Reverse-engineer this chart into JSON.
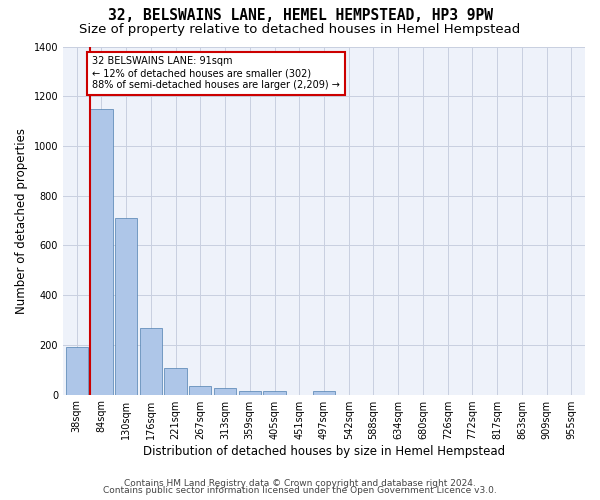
{
  "title": "32, BELSWAINS LANE, HEMEL HEMPSTEAD, HP3 9PW",
  "subtitle": "Size of property relative to detached houses in Hemel Hempstead",
  "xlabel": "Distribution of detached houses by size in Hemel Hempstead",
  "ylabel": "Number of detached properties",
  "footer_line1": "Contains HM Land Registry data © Crown copyright and database right 2024.",
  "footer_line2": "Contains public sector information licensed under the Open Government Licence v3.0.",
  "annotation_line1": "32 BELSWAINS LANE: 91sqm",
  "annotation_line2": "← 12% of detached houses are smaller (302)",
  "annotation_line3": "88% of semi-detached houses are larger (2,209) →",
  "categories": [
    "38sqm",
    "84sqm",
    "130sqm",
    "176sqm",
    "221sqm",
    "267sqm",
    "313sqm",
    "359sqm",
    "405sqm",
    "451sqm",
    "497sqm",
    "542sqm",
    "588sqm",
    "634sqm",
    "680sqm",
    "726sqm",
    "772sqm",
    "817sqm",
    "863sqm",
    "909sqm",
    "955sqm"
  ],
  "values": [
    193,
    1150,
    710,
    268,
    107,
    35,
    28,
    15,
    13,
    0,
    16,
    0,
    0,
    0,
    0,
    0,
    0,
    0,
    0,
    0,
    0
  ],
  "bar_color": "#aec6e8",
  "bar_edge_color": "#5080b0",
  "vline_color": "#cc0000",
  "annotation_box_edge": "#cc0000",
  "background_color": "#eef2fa",
  "ylim": [
    0,
    1400
  ],
  "yticks": [
    0,
    200,
    400,
    600,
    800,
    1000,
    1200,
    1400
  ],
  "grid_color": "#c8cfe0",
  "title_fontsize": 10.5,
  "subtitle_fontsize": 9.5,
  "axis_label_fontsize": 8.5,
  "tick_fontsize": 7,
  "footer_fontsize": 6.5
}
